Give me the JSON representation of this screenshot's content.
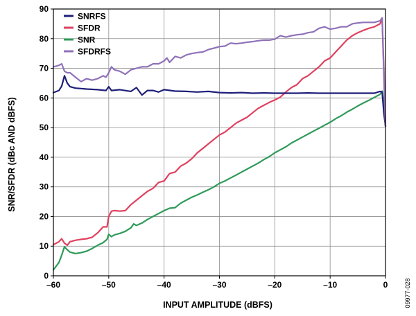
{
  "chart_data": {
    "type": "line",
    "title": "",
    "xlabel": "INPUT AMPLITUDE (dBFS)",
    "ylabel": "SNR/SFDR (dBc AND dBFS)",
    "xlim": [
      -60,
      0
    ],
    "ylim": [
      0,
      90
    ],
    "xticks": [
      "–60",
      "–50",
      "–40",
      "–30",
      "–20",
      "–10",
      "0"
    ],
    "yticks": [
      "0",
      "10",
      "20",
      "30",
      "40",
      "50",
      "60",
      "70",
      "80",
      "90"
    ],
    "grid": true,
    "legend_position": "top-left",
    "figure_id": "09977-028",
    "series": [
      {
        "name": "SNRFS",
        "color": "#1f1f7a",
        "points": [
          [
            -60,
            61.8
          ],
          [
            -59,
            62.5
          ],
          [
            -58.5,
            64
          ],
          [
            -58,
            67.5
          ],
          [
            -57.5,
            65
          ],
          [
            -57,
            63.8
          ],
          [
            -56,
            63.3
          ],
          [
            -54,
            63
          ],
          [
            -52,
            62.8
          ],
          [
            -50.5,
            62.5
          ],
          [
            -50,
            63.8
          ],
          [
            -49.5,
            62.5
          ],
          [
            -48,
            62.8
          ],
          [
            -46,
            62.2
          ],
          [
            -45,
            63.5
          ],
          [
            -44,
            61
          ],
          [
            -43,
            62.5
          ],
          [
            -42,
            62.5
          ],
          [
            -41,
            62
          ],
          [
            -40,
            62.8
          ],
          [
            -38,
            62.3
          ],
          [
            -36,
            62.2
          ],
          [
            -34,
            62
          ],
          [
            -32,
            62.2
          ],
          [
            -30,
            61.8
          ],
          [
            -28,
            61.7
          ],
          [
            -26,
            61.8
          ],
          [
            -24,
            61.6
          ],
          [
            -22,
            61.7
          ],
          [
            -20,
            61.6
          ],
          [
            -18,
            61.6
          ],
          [
            -16,
            61.6
          ],
          [
            -14,
            61.7
          ],
          [
            -12,
            61.6
          ],
          [
            -10,
            61.6
          ],
          [
            -8,
            61.6
          ],
          [
            -6,
            61.6
          ],
          [
            -4,
            61.6
          ],
          [
            -2,
            61.6
          ],
          [
            -1,
            62.2
          ],
          [
            -0.6,
            62
          ],
          [
            -0.3,
            55
          ],
          [
            0,
            50.5
          ]
        ]
      },
      {
        "name": "SFDR",
        "color": "#e0405f",
        "points": [
          [
            -60,
            10.5
          ],
          [
            -59,
            11.5
          ],
          [
            -58.5,
            12.5
          ],
          [
            -58,
            11
          ],
          [
            -57.5,
            10.3
          ],
          [
            -57,
            11.5
          ],
          [
            -56,
            12
          ],
          [
            -55,
            12.3
          ],
          [
            -54,
            12.5
          ],
          [
            -53,
            13
          ],
          [
            -52,
            14.5
          ],
          [
            -51,
            16.5
          ],
          [
            -50.3,
            16.5
          ],
          [
            -50,
            20
          ],
          [
            -49.5,
            21.8
          ],
          [
            -49,
            22
          ],
          [
            -48,
            21.8
          ],
          [
            -47,
            22
          ],
          [
            -46,
            24
          ],
          [
            -45,
            25.5
          ],
          [
            -44,
            27
          ],
          [
            -43,
            28.5
          ],
          [
            -42,
            29.5
          ],
          [
            -41,
            31.5
          ],
          [
            -40,
            32
          ],
          [
            -39,
            34.5
          ],
          [
            -38,
            35
          ],
          [
            -37,
            37
          ],
          [
            -36,
            38
          ],
          [
            -35,
            39.5
          ],
          [
            -34,
            41.5
          ],
          [
            -33,
            43
          ],
          [
            -32,
            44.5
          ],
          [
            -31,
            46
          ],
          [
            -30,
            47.5
          ],
          [
            -29,
            48.5
          ],
          [
            -28,
            50
          ],
          [
            -27,
            51.5
          ],
          [
            -26,
            52.5
          ],
          [
            -25,
            53.5
          ],
          [
            -24,
            55
          ],
          [
            -23,
            56.5
          ],
          [
            -22,
            57.5
          ],
          [
            -21,
            58.5
          ],
          [
            -20,
            59.3
          ],
          [
            -19,
            60.3
          ],
          [
            -18,
            62
          ],
          [
            -17,
            63.5
          ],
          [
            -16,
            64.5
          ],
          [
            -15,
            66.5
          ],
          [
            -14,
            67.5
          ],
          [
            -13,
            69
          ],
          [
            -12,
            70.5
          ],
          [
            -11,
            72.5
          ],
          [
            -10,
            73.5
          ],
          [
            -9,
            75.5
          ],
          [
            -8,
            77.5
          ],
          [
            -7,
            79.5
          ],
          [
            -6,
            81
          ],
          [
            -5,
            82
          ],
          [
            -4,
            82.8
          ],
          [
            -3,
            83.5
          ],
          [
            -2,
            84
          ],
          [
            -1,
            85
          ],
          [
            -0.6,
            86.5
          ],
          [
            -0.3,
            70
          ],
          [
            0,
            50.5
          ]
        ]
      },
      {
        "name": "SNR",
        "color": "#2f9a5a",
        "points": [
          [
            -60,
            2
          ],
          [
            -59,
            4.5
          ],
          [
            -58.5,
            7
          ],
          [
            -58,
            9.8
          ],
          [
            -57.5,
            8.8
          ],
          [
            -57,
            8
          ],
          [
            -56,
            7.5
          ],
          [
            -55,
            7.8
          ],
          [
            -54,
            8.3
          ],
          [
            -53,
            9.2
          ],
          [
            -52,
            10.3
          ],
          [
            -51,
            11.2
          ],
          [
            -50.3,
            12.3
          ],
          [
            -50,
            14
          ],
          [
            -49.5,
            13.2
          ],
          [
            -49,
            13.8
          ],
          [
            -48,
            14.3
          ],
          [
            -47,
            15
          ],
          [
            -46,
            16.2
          ],
          [
            -45.5,
            17.5
          ],
          [
            -45,
            17
          ],
          [
            -44,
            17.8
          ],
          [
            -43,
            19
          ],
          [
            -42,
            20
          ],
          [
            -41,
            21
          ],
          [
            -40,
            22
          ],
          [
            -39,
            22.8
          ],
          [
            -38,
            23
          ],
          [
            -37,
            24.5
          ],
          [
            -36,
            25.5
          ],
          [
            -35,
            26.5
          ],
          [
            -34,
            27.3
          ],
          [
            -33,
            28.2
          ],
          [
            -32,
            29
          ],
          [
            -31,
            30
          ],
          [
            -30,
            31.2
          ],
          [
            -29,
            32
          ],
          [
            -28,
            33
          ],
          [
            -27,
            34
          ],
          [
            -26,
            35
          ],
          [
            -25,
            36
          ],
          [
            -24,
            37
          ],
          [
            -23,
            38
          ],
          [
            -22,
            39.2
          ],
          [
            -21,
            40.2
          ],
          [
            -20,
            41.5
          ],
          [
            -19,
            42.5
          ],
          [
            -18,
            43.5
          ],
          [
            -17,
            44.8
          ],
          [
            -16,
            45.8
          ],
          [
            -15,
            46.8
          ],
          [
            -14,
            47.8
          ],
          [
            -13,
            48.8
          ],
          [
            -12,
            49.8
          ],
          [
            -11,
            50.8
          ],
          [
            -10,
            51.8
          ],
          [
            -9,
            53
          ],
          [
            -8,
            54
          ],
          [
            -7,
            55.2
          ],
          [
            -6,
            56.2
          ],
          [
            -5,
            57.3
          ],
          [
            -4,
            58.3
          ],
          [
            -3,
            59.2
          ],
          [
            -2,
            60.2
          ],
          [
            -1,
            61.2
          ],
          [
            -0.6,
            62.3
          ],
          [
            -0.3,
            58
          ],
          [
            0,
            50.5
          ]
        ]
      },
      {
        "name": "SFDRFS",
        "color": "#8f72b9",
        "points": [
          [
            -60,
            70.5
          ],
          [
            -59,
            71
          ],
          [
            -58.5,
            71.5
          ],
          [
            -58,
            69
          ],
          [
            -57.5,
            68.5
          ],
          [
            -57,
            68.5
          ],
          [
            -56,
            67
          ],
          [
            -55,
            65.5
          ],
          [
            -54,
            66.5
          ],
          [
            -53,
            66
          ],
          [
            -52,
            66.5
          ],
          [
            -51,
            67.5
          ],
          [
            -50.5,
            67
          ],
          [
            -50,
            68.5
          ],
          [
            -49.5,
            70.5
          ],
          [
            -49,
            69.5
          ],
          [
            -48,
            69
          ],
          [
            -47,
            68
          ],
          [
            -46,
            69.5
          ],
          [
            -45,
            70
          ],
          [
            -44,
            70.5
          ],
          [
            -43,
            70.5
          ],
          [
            -42,
            71.5
          ],
          [
            -41,
            71.5
          ],
          [
            -40,
            72.5
          ],
          [
            -39.5,
            73.5
          ],
          [
            -39,
            72
          ],
          [
            -38,
            74
          ],
          [
            -37,
            73.5
          ],
          [
            -36,
            74.5
          ],
          [
            -35,
            75
          ],
          [
            -34,
            75.3
          ],
          [
            -33,
            75.5
          ],
          [
            -32,
            76.3
          ],
          [
            -31,
            76.8
          ],
          [
            -30,
            77.3
          ],
          [
            -29,
            77.5
          ],
          [
            -28,
            78.5
          ],
          [
            -27,
            78.3
          ],
          [
            -26,
            78.5
          ],
          [
            -25,
            78.8
          ],
          [
            -24,
            79
          ],
          [
            -23,
            79.3
          ],
          [
            -22,
            79.5
          ],
          [
            -21,
            79.5
          ],
          [
            -20,
            79.8
          ],
          [
            -19,
            81
          ],
          [
            -18,
            80.5
          ],
          [
            -17,
            81
          ],
          [
            -16,
            81.3
          ],
          [
            -15,
            81.5
          ],
          [
            -14,
            82
          ],
          [
            -13,
            82.3
          ],
          [
            -12,
            83.5
          ],
          [
            -11,
            84
          ],
          [
            -10,
            83.2
          ],
          [
            -9,
            83.5
          ],
          [
            -8,
            84
          ],
          [
            -7,
            84
          ],
          [
            -6,
            85
          ],
          [
            -5,
            85.3
          ],
          [
            -4,
            85.5
          ],
          [
            -3,
            85.5
          ],
          [
            -2,
            85.5
          ],
          [
            -1,
            86
          ],
          [
            -0.6,
            87
          ],
          [
            -0.3,
            68
          ],
          [
            0,
            50.5
          ]
        ]
      }
    ]
  }
}
